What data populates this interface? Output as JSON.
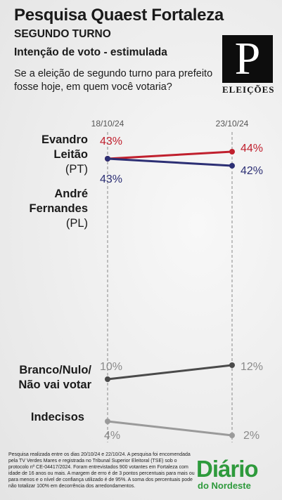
{
  "header": {
    "title": "Pesquisa Quaest Fortaleza",
    "round": "SEGUNDO TURNO",
    "type": "Intenção de voto - estimulada",
    "question": "Se a eleição de segundo turno para prefeito fosse hoje, em quem você votaria?"
  },
  "logo": {
    "letter": "P",
    "caption": "ELEIÇÕES"
  },
  "chart_data": {
    "type": "line",
    "x": [
      "18/10/24",
      "23/10/24"
    ],
    "unit": "%",
    "series": [
      {
        "name": "Evandro Leitão (PT)",
        "name_line1": "Evandro",
        "name_line2": "Leitão",
        "party": "(PT)",
        "values": [
          43,
          44
        ],
        "color": "#c0202e"
      },
      {
        "name": "André Fernandes (PL)",
        "name_line1": "André",
        "name_line2": "Fernandes",
        "party": "(PL)",
        "values": [
          43,
          42
        ],
        "color": "#2c2f74"
      },
      {
        "name": "Branco/Nulo/ Não vai votar",
        "name_line1": "Branco/Nulo/",
        "name_line2": "Não vai votar",
        "values": [
          10,
          12
        ],
        "color": "#4a4a4a"
      },
      {
        "name": "Indecisos",
        "name_line1": "Indecisos",
        "values": [
          4,
          2
        ],
        "color": "#9a9a9a"
      }
    ],
    "labels": {
      "evandro": [
        "43%",
        "44%"
      ],
      "andre": [
        "43%",
        "42%"
      ],
      "branco": [
        "10%",
        "12%"
      ],
      "indecisos": [
        "4%",
        "2%"
      ]
    }
  },
  "footnote": "Pesquisa realizada entre os dias 20/10/24 e 22/10/24. A pesquisa foi encomendada pela TV Verdes Mares e registrada no Tribunal Superior Eleitoral (TSE) sob o protocolo nº CE-04417/2024. Foram entrevistados 900 votantes em Fortaleza com idade de 16 anos ou mais. A margem de erro é de 3 pontos percentuais para mais ou para menos e o nível de confiança utilizado é de 95%. A soma dos percentuais pode não totalizar 100% em decorrência dos arredondamentos.",
  "brand": {
    "main": "Diário",
    "sub": "do Nordeste"
  }
}
